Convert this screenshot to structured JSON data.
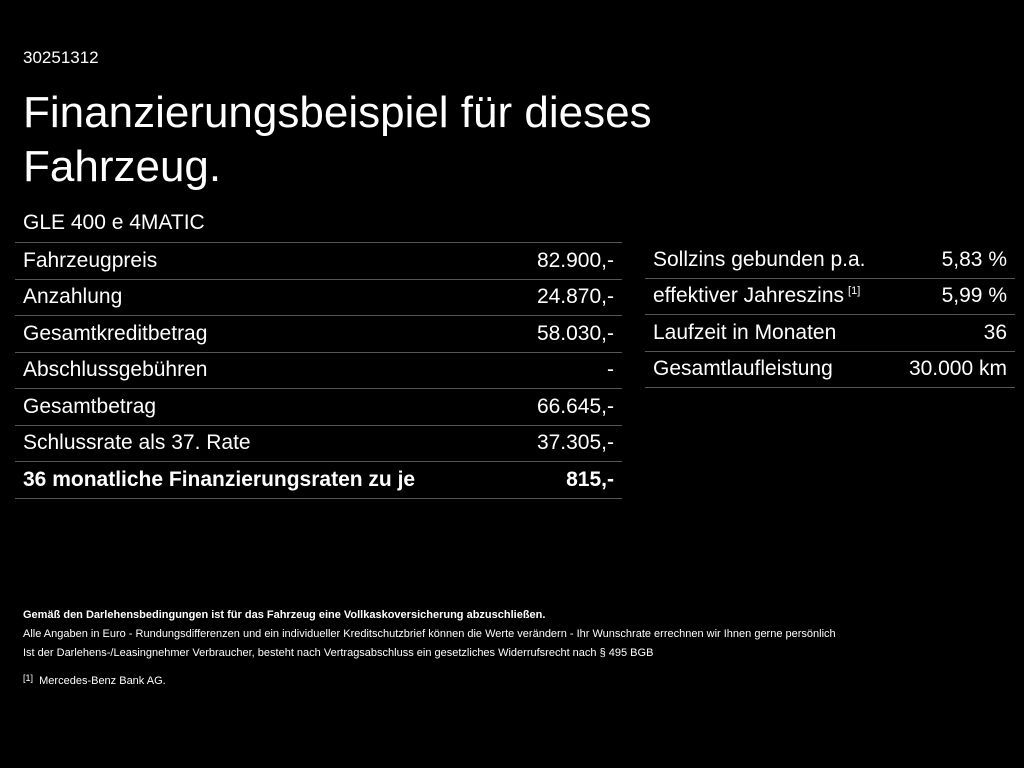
{
  "header": {
    "id": "30251312",
    "title_lines": [
      "Finanzierungsbeispiel für dieses",
      "Fahrzeug."
    ],
    "model": "GLE 400 e 4MATIC"
  },
  "left_table": {
    "rows": [
      {
        "label": "Fahrzeugpreis",
        "value": "82.900,-"
      },
      {
        "label": "Anzahlung",
        "value": "24.870,-"
      },
      {
        "label": "Gesamtkreditbetrag",
        "value": "58.030,-"
      },
      {
        "label": "Abschlussgebühren",
        "value": "-"
      },
      {
        "label": "Gesamtbetrag",
        "value": "66.645,-"
      },
      {
        "label": "Schlussrate als 37. Rate",
        "value": "37.305,-"
      },
      {
        "label": "36 monatliche Finanzierungsraten zu je",
        "value": "815,-"
      }
    ]
  },
  "right_table": {
    "rows": [
      {
        "label": "Sollzins gebunden p.a.",
        "value": "5,83 %"
      },
      {
        "label": "effektiver Jahreszins",
        "note": "[1]",
        "value": "5,99 %"
      },
      {
        "label": "Laufzeit in Monaten",
        "value": "36"
      },
      {
        "label": "Gesamtlaufleistung",
        "value": "30.000 km"
      }
    ]
  },
  "footer": {
    "bold_line": "Gemäß den Darlehensbedingungen ist für das Fahrzeug eine Vollkaskoversicherung abzuschließen.",
    "lines": [
      "Alle Angaben in Euro - Rundungsdifferenzen und ein individueller Kreditschutzbrief können die Werte verändern - Ihr Wunschrate errechnen wir Ihnen gerne persönlich",
      "Ist der Darlehens-/Leasingnehmer Verbraucher, besteht nach Vertragsabschluss ein gesetzliches Widerrufsrecht nach § 495 BGB"
    ],
    "footnote": {
      "marker": "[1]",
      "text": "Mercedes-Benz Bank AG."
    }
  }
}
